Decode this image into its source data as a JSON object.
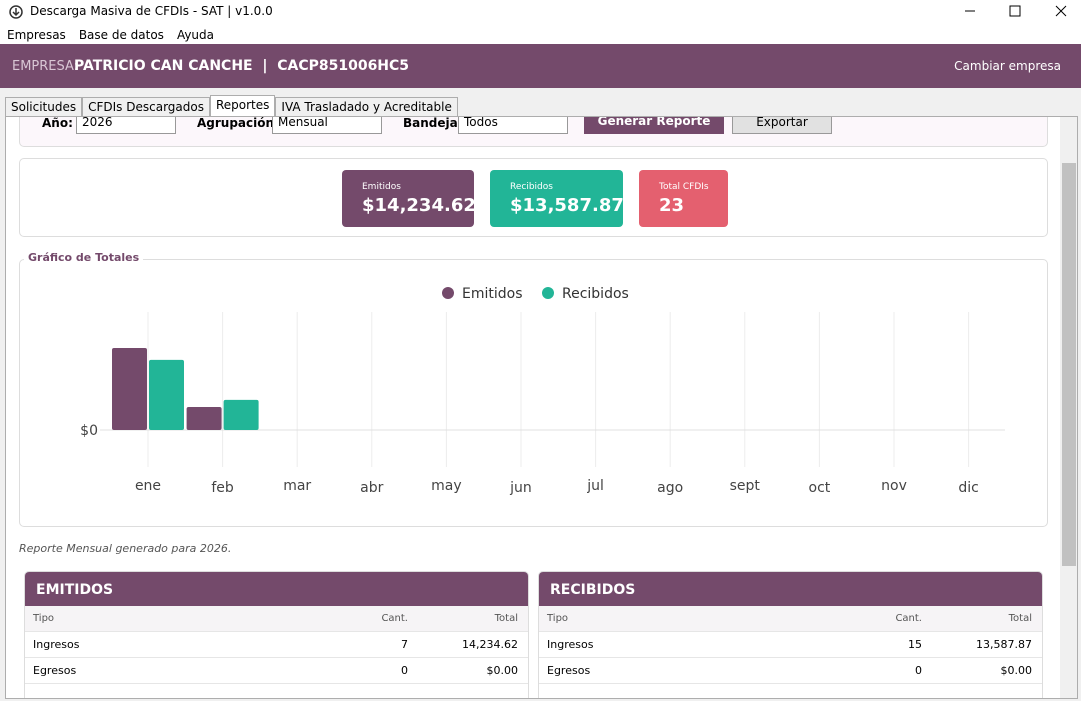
{
  "window": {
    "title": "Descarga Masiva de CFDIs - SAT | v1.0.0"
  },
  "menu": [
    "Empresas",
    "Base de datos",
    "Ayuda"
  ],
  "header": {
    "label": "EMPRESA:",
    "company": "PATRICIO CAN CANCHE  |  CACP851006HC5",
    "action": "Cambiar empresa"
  },
  "tabs": [
    "Solicitudes",
    "CFDIs Descargados",
    "Reportes",
    "IVA Trasladado y Acreditable"
  ],
  "filters": {
    "year_label": "Año:",
    "year": "2026",
    "group_label": "Agrupación:",
    "group": "Mensual",
    "tray_label": "Bandeja:",
    "tray": "Todos",
    "generate": "Generar Reporte",
    "export": "Exportar"
  },
  "cards": [
    {
      "label": "Emitidos",
      "value": "$14,234.62"
    },
    {
      "label": "Recibidos",
      "value": "$13,587.87"
    },
    {
      "label": "Total CFDIs",
      "value": "23"
    }
  ],
  "chart_data": {
    "type": "bar",
    "title": "Gráfico de Totales",
    "categories": [
      "ene",
      "feb",
      "mar",
      "abr",
      "may",
      "jun",
      "jul",
      "ago",
      "sept",
      "oct",
      "nov",
      "dic"
    ],
    "series": [
      {
        "name": "Emitidos",
        "color": "#744a6b",
        "values": [
          11120,
          3115,
          0,
          0,
          0,
          0,
          0,
          0,
          0,
          0,
          0,
          0
        ]
      },
      {
        "name": "Recibidos",
        "color": "#22b597",
        "values": [
          9510,
          4078,
          0,
          0,
          0,
          0,
          0,
          0,
          0,
          0,
          0,
          0
        ]
      }
    ],
    "ylim": [
      0,
      16000
    ],
    "yticks": [
      {
        "value": 0,
        "label": "$0"
      }
    ],
    "grid": true
  },
  "note": "Reporte Mensual generado para 2026.",
  "tables": [
    {
      "title": "EMITIDOS",
      "columns": [
        "Tipo",
        "Cant.",
        "Total"
      ],
      "rows": [
        [
          "Ingresos",
          "7",
          "14,234.62"
        ],
        [
          "Egresos",
          "0",
          "$0.00"
        ]
      ]
    },
    {
      "title": "RECIBIDOS",
      "columns": [
        "Tipo",
        "Cant.",
        "Total"
      ],
      "rows": [
        [
          "Ingresos",
          "15",
          "13,587.87"
        ],
        [
          "Egresos",
          "0",
          "$0.00"
        ]
      ]
    }
  ]
}
